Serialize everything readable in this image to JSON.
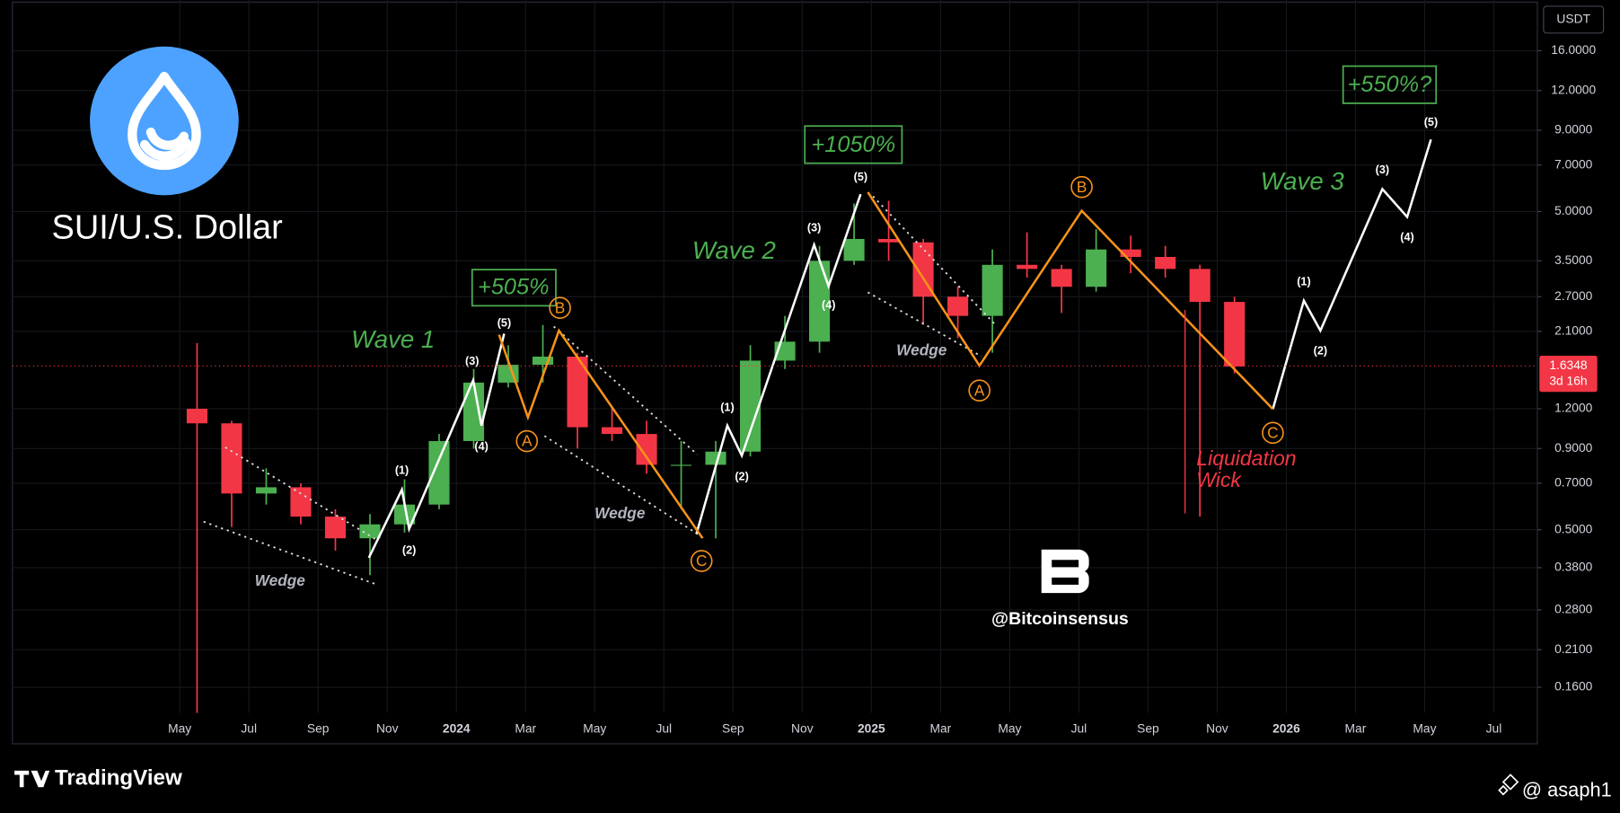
{
  "chart_data": {
    "type": "candlestick",
    "title": "SUI/U.S. Dollar",
    "currency": "USDT",
    "log_scale": true,
    "grid": true,
    "up_color": "#4caf50",
    "down_color": "#f23645",
    "categories": [
      "May",
      null,
      "Jul",
      null,
      "Sep",
      null,
      "Nov",
      null,
      "2024",
      null,
      "Mar",
      null,
      "May",
      null,
      "Jul",
      null,
      "Sep",
      null,
      "Nov",
      null,
      "2025",
      null,
      "Mar",
      null,
      "May",
      null,
      "Jul",
      null,
      "Sep",
      null,
      "Nov",
      null,
      "2026",
      null,
      "Mar",
      null,
      "May",
      null,
      "Jul"
    ],
    "open": [
      1.2,
      1.08,
      0.65,
      0.68,
      0.55,
      0.47,
      0.52,
      0.6,
      0.95,
      1.45,
      1.65,
      1.75,
      1.05,
      1.0,
      0.8,
      0.8,
      0.88,
      1.7,
      1.95,
      3.5,
      4.1,
      4.0,
      2.7,
      2.35,
      3.4,
      3.3,
      2.9,
      3.8,
      3.6,
      3.3,
      2.6,
      null,
      null,
      null,
      null,
      null,
      null,
      null,
      null
    ],
    "high": [
      1.93,
      1.1,
      0.78,
      0.7,
      0.58,
      0.56,
      0.72,
      1.0,
      1.6,
      1.9,
      2.2,
      1.8,
      1.2,
      1.1,
      0.95,
      0.95,
      1.9,
      2.35,
      3.9,
      5.3,
      5.4,
      4.1,
      2.9,
      3.8,
      4.3,
      3.4,
      4.4,
      4.2,
      3.9,
      3.4,
      2.7,
      null,
      null,
      null,
      null,
      null,
      null,
      null,
      null
    ],
    "low": [
      0.1,
      0.51,
      0.6,
      0.52,
      0.43,
      0.36,
      0.49,
      0.58,
      0.9,
      1.4,
      1.45,
      0.9,
      0.95,
      0.75,
      0.58,
      0.47,
      0.85,
      1.6,
      1.8,
      3.4,
      3.5,
      2.2,
      2.0,
      1.8,
      3.1,
      2.4,
      2.8,
      3.2,
      3.1,
      0.55,
      1.55,
      null,
      null,
      null,
      null,
      null,
      null,
      null,
      null
    ],
    "close": [
      1.08,
      0.65,
      0.68,
      0.55,
      0.47,
      0.52,
      0.6,
      0.95,
      1.45,
      1.65,
      1.75,
      1.05,
      1.0,
      0.8,
      0.8,
      0.88,
      1.7,
      1.95,
      3.5,
      4.1,
      4.0,
      2.7,
      2.35,
      3.4,
      3.3,
      2.9,
      3.8,
      3.6,
      3.3,
      2.6,
      1.63,
      null,
      null,
      null,
      null,
      null,
      null,
      null,
      null
    ],
    "ylim": [
      0.133,
      23.1
    ],
    "yticks": [
      {
        "value": 16,
        "label": "16.0000"
      },
      {
        "value": 12,
        "label": "12.0000"
      },
      {
        "value": 9,
        "label": "9.0000"
      },
      {
        "value": 7,
        "label": "7.0000"
      },
      {
        "value": 5,
        "label": "5.0000"
      },
      {
        "value": 3.5,
        "label": "3.5000"
      },
      {
        "value": 2.7,
        "label": "2.7000"
      },
      {
        "value": 2.1,
        "label": "2.1000"
      },
      {
        "value": 1.2,
        "label": "1.2000"
      },
      {
        "value": 0.9,
        "label": "0.9000"
      },
      {
        "value": 0.7,
        "label": "0.7000"
      },
      {
        "value": 0.5,
        "label": "0.5000"
      },
      {
        "value": 0.38,
        "label": "0.3800"
      },
      {
        "value": 0.28,
        "label": "0.2800"
      },
      {
        "value": 0.21,
        "label": "0.2100"
      },
      {
        "value": 0.16,
        "label": "0.1600"
      }
    ],
    "last_price": 1.6348,
    "countdown": "3d 16h",
    "wave_labels": [
      "Wave 1",
      "Wave 2",
      "Wave 3"
    ],
    "gain_labels": [
      "+505%",
      "+1050%",
      "+550%?"
    ],
    "wedge_labels": [
      "Wedge",
      "Wedge",
      "Wedge"
    ],
    "wave_counts": [
      "(1)",
      "(2)",
      "(3)",
      "(4)",
      "(5)",
      "(1)",
      "(2)",
      "(3)",
      "(4)",
      "(5)",
      "(1)",
      "(2)",
      "(3)",
      "(4)",
      "(5)"
    ],
    "corrections": [
      "A",
      "B",
      "C",
      "A",
      "B",
      "C"
    ],
    "liquidation_label": [
      "Liquidation",
      "Wick"
    ],
    "watermark": "@Bitcoinsensus"
  },
  "branding": {
    "platform": "TradingView",
    "author": "@ asaph1"
  }
}
